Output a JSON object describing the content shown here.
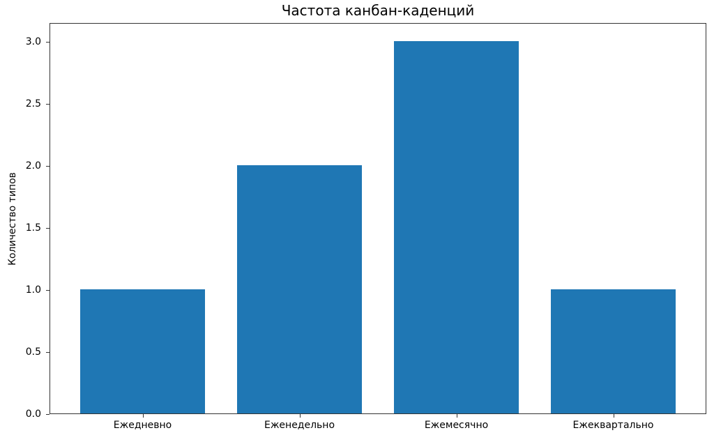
{
  "chart_data": {
    "type": "bar",
    "title": "Частота канбан-каденций",
    "xlabel": "",
    "ylabel": "Количество типов",
    "categories": [
      "Ежедневно",
      "Еженедельно",
      "Ежемесячно",
      "Ежеквартально"
    ],
    "values": [
      1,
      2,
      3,
      1
    ],
    "ylim": [
      0,
      3.15
    ],
    "yticks": [
      "0.0",
      "0.5",
      "1.0",
      "1.5",
      "2.0",
      "2.5",
      "3.0"
    ],
    "grid": false,
    "legend": null,
    "bar_color": "#1f77b4"
  }
}
